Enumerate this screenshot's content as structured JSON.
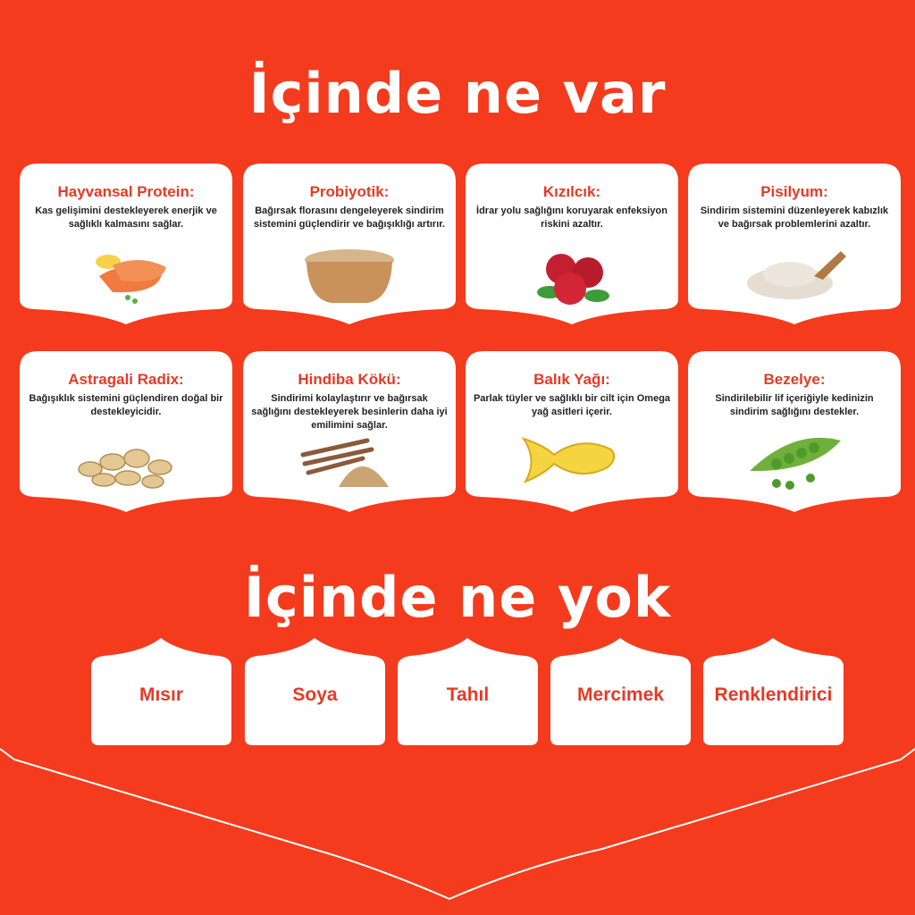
{
  "colors": {
    "background": "#F43B1D",
    "accent_text": "#E53A26",
    "card": "#FFFFFF"
  },
  "sections": {
    "has": {
      "title": "İçinde ne var"
    },
    "has_not": {
      "title": "İçinde ne yok"
    }
  },
  "ingredients": [
    {
      "name": "Hayvansal Protein:",
      "desc": "Kas gelişimini destekleyerek enerjik ve sağlıklı kalmasını sağlar.",
      "icon": "salmon-icon"
    },
    {
      "name": "Probiyotik:",
      "desc": "Bağırsak florasını dengeleyerek sindirim sistemini güçlendirir ve bağışıklığı artırır.",
      "icon": "powder-bowl-icon"
    },
    {
      "name": "Kızılcık:",
      "desc": "İdrar yolu sağlığını koruyarak enfeksiyon riskini azaltır.",
      "icon": "cranberry-icon"
    },
    {
      "name": "Pisilyum:",
      "desc": "Sindirim sistemini düzenleyerek kabızlık ve bağırsak problemlerini azaltır.",
      "icon": "psyllium-icon"
    },
    {
      "name": "Astragali Radix:",
      "desc": "Bağışıklık sistemini güçlendiren doğal bir destekleyicidir.",
      "icon": "root-slices-icon"
    },
    {
      "name": "Hindiba Kökü:",
      "desc": "Sindirimi kolaylaştırır ve bağırsak sağlığını destekleyerek besinlerin daha iyi emilimini sağlar.",
      "icon": "chicory-root-icon"
    },
    {
      "name": "Balık Yağı:",
      "desc": "Parlak tüyler ve sağlıklı bir cilt için Omega yağ asitleri içerir.",
      "icon": "fish-oil-capsule-icon"
    },
    {
      "name": "Bezelye:",
      "desc": "Sindirilebilir lif içeriğiyle kedinizin sindirim sağlığını destekler.",
      "icon": "pea-pod-icon"
    }
  ],
  "excluded": [
    "Mısır",
    "Soya",
    "Tahıl",
    "Mercimek",
    "Renklendirici"
  ]
}
